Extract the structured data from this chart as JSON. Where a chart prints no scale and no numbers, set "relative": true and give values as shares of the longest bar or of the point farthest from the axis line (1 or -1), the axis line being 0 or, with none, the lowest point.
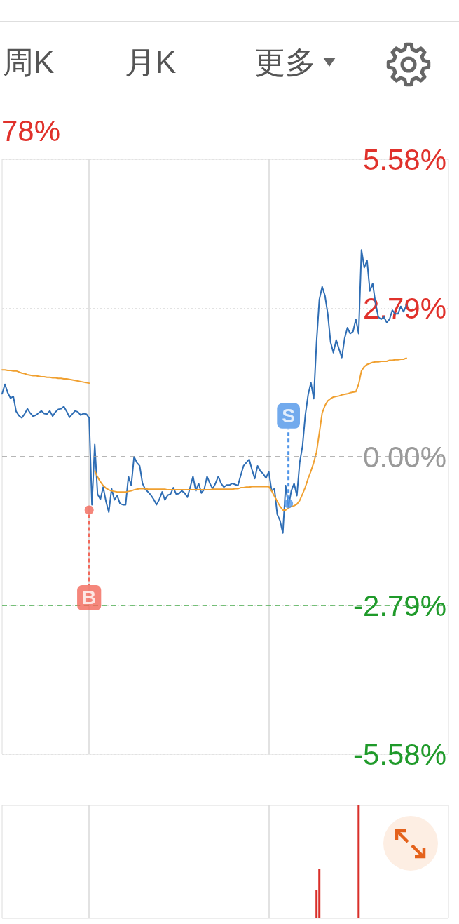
{
  "chart_data": [
    {
      "type": "line",
      "annotations": [
        "周K",
        "月K",
        "更多",
        "78%"
      ],
      "categories": [
        null,
        null,
        null,
        null,
        null,
        null,
        null,
        null,
        null,
        null,
        null,
        null,
        null,
        null,
        null,
        null,
        null,
        null,
        null,
        null,
        null,
        null,
        null,
        null,
        null,
        null,
        null,
        null,
        null,
        null,
        null,
        null,
        null,
        null,
        null,
        null,
        null,
        null,
        null,
        null,
        null,
        null,
        null,
        null,
        null,
        null,
        null,
        null,
        null,
        null,
        null,
        null,
        null,
        null,
        null,
        null,
        null,
        null,
        null,
        null,
        null,
        null,
        null,
        null,
        null,
        null,
        null,
        null,
        null,
        null,
        null,
        null,
        null,
        null,
        null,
        null,
        null,
        null,
        null,
        null,
        null,
        null,
        null,
        null,
        null,
        null,
        null,
        null,
        null,
        null,
        null,
        null,
        null,
        null,
        null,
        null,
        null,
        null,
        null,
        null,
        null,
        null,
        null,
        null,
        null,
        null,
        null,
        null,
        null,
        null,
        null,
        null,
        null,
        null,
        null,
        null,
        null,
        null,
        null,
        null,
        null,
        null,
        null,
        null,
        null,
        null,
        null,
        null,
        null,
        null,
        null,
        null,
        null,
        null,
        null,
        null,
        null,
        null,
        null,
        null,
        null,
        null,
        null,
        null,
        null,
        null,
        null,
        null,
        null,
        null,
        null,
        null,
        null,
        null,
        null,
        null,
        null,
        null,
        null,
        null
      ],
      "series": [
        {
          "color": "#2e6db4",
          "values": [
            1.18,
            1.36,
            1.2,
            1.1,
            1.13,
            0.85,
            0.77,
            0.73,
            0.8,
            0.9,
            0.82,
            0.76,
            0.78,
            0.82,
            0.86,
            0.81,
            0.8,
            0.86,
            0.76,
            0.84,
            0.89,
            0.9,
            0.94,
            0.85,
            0.74,
            0.8,
            0.86,
            0.84,
            0.78,
            0.81,
            0.8,
            0.73,
            -0.9,
            0.23,
            -0.7,
            -0.8,
            -0.57,
            -0.84,
            -1.04,
            -0.6,
            -0.81,
            -0.73,
            -0.88,
            -0.9,
            -0.9,
            -0.37,
            -0.54,
            0.0,
            -0.11,
            -0.17,
            -0.5,
            -0.61,
            -0.66,
            -0.72,
            -0.8,
            -0.9,
            -0.8,
            -0.66,
            -0.81,
            -0.72,
            -0.7,
            -0.58,
            -0.7,
            -0.69,
            -0.64,
            -0.68,
            -0.76,
            -0.57,
            -0.37,
            -0.64,
            -0.5,
            -0.68,
            -0.61,
            -0.37,
            -0.5,
            -0.6,
            -0.5,
            -0.37,
            -0.5,
            -0.57,
            -0.53,
            -0.53,
            -0.5,
            -0.52,
            -0.54,
            -0.35,
            -0.17,
            -0.11,
            -0.05,
            -0.24,
            -0.41,
            -0.17,
            -0.27,
            -0.32,
            -0.4,
            -0.28,
            -0.64,
            -0.6,
            -1.08,
            -1.2,
            -1.43,
            -0.54,
            -0.94,
            -0.64,
            -0.5,
            -0.73,
            -0.11,
            0.2,
            0.78,
            1.16,
            1.39,
            1.09,
            2.15,
            2.95,
            3.19,
            3.02,
            2.68,
            2.15,
            1.95,
            2.19,
            2.02,
            1.86,
            2.22,
            2.42,
            2.31,
            2.35,
            2.58,
            2.31,
            3.88,
            3.55,
            3.68,
            3.11,
            3.25,
            2.88,
            2.62,
            2.58,
            2.62,
            2.52,
            2.58,
            2.75,
            2.68,
            2.68,
            2.82,
            2.72,
            2.84,
            null,
            null,
            null,
            null,
            null,
            null,
            null,
            null,
            null,
            null,
            null,
            null,
            null,
            null,
            null
          ]
        },
        {
          "color": "#f0a030",
          "values": [
            1.63,
            1.63,
            1.62,
            1.62,
            1.61,
            1.61,
            1.59,
            1.57,
            1.56,
            1.54,
            1.53,
            1.52,
            1.52,
            1.51,
            1.5,
            1.5,
            1.49,
            1.49,
            1.48,
            1.48,
            1.47,
            1.47,
            1.46,
            1.46,
            1.45,
            1.44,
            1.43,
            1.42,
            1.41,
            1.4,
            1.39,
            1.38,
            null,
            -0.27,
            -0.38,
            -0.47,
            -0.54,
            -0.59,
            -0.62,
            -0.64,
            -0.65,
            -0.66,
            -0.66,
            -0.66,
            -0.66,
            -0.65,
            -0.64,
            -0.62,
            -0.61,
            -0.6,
            -0.6,
            -0.6,
            -0.61,
            -0.61,
            -0.61,
            -0.61,
            -0.61,
            -0.61,
            -0.61,
            -0.62,
            -0.62,
            -0.62,
            -0.62,
            -0.62,
            -0.62,
            -0.62,
            -0.62,
            -0.62,
            -0.62,
            -0.62,
            -0.62,
            -0.62,
            -0.62,
            -0.62,
            -0.62,
            -0.61,
            -0.61,
            -0.61,
            -0.61,
            -0.61,
            -0.61,
            -0.61,
            -0.61,
            -0.6,
            -0.6,
            -0.58,
            -0.58,
            -0.57,
            -0.57,
            -0.56,
            -0.56,
            -0.56,
            -0.56,
            -0.56,
            -0.56,
            -0.56,
            -0.64,
            -0.74,
            -0.84,
            -0.93,
            -1.0,
            -1.0,
            -0.96,
            -0.93,
            -0.92,
            -0.89,
            -0.82,
            -0.7,
            -0.57,
            -0.41,
            -0.27,
            -0.11,
            0.09,
            0.45,
            0.82,
            0.96,
            1.05,
            1.09,
            1.12,
            1.13,
            1.14,
            1.16,
            1.17,
            1.18,
            1.2,
            1.21,
            1.22,
            1.36,
            1.61,
            1.69,
            1.73,
            1.75,
            1.77,
            1.78,
            1.78,
            1.79,
            1.79,
            1.79,
            1.81,
            1.81,
            1.82,
            1.82,
            1.83,
            1.83,
            1.85,
            null,
            null,
            null,
            null,
            null,
            null,
            null,
            null,
            null,
            null,
            null,
            null,
            null,
            null,
            null
          ]
        },
        {
          "type": "scatter",
          "name": "B",
          "color": "#f2685a",
          "marker": "circle",
          "values": [
            null,
            null,
            null,
            null,
            null,
            null,
            null,
            null,
            null,
            null,
            null,
            null,
            null,
            null,
            null,
            null,
            null,
            null,
            null,
            null,
            null,
            null,
            null,
            null,
            null,
            null,
            null,
            null,
            null,
            null,
            null,
            -1.0,
            null,
            null,
            null,
            null,
            null,
            null,
            null,
            null,
            null,
            null,
            null,
            null,
            null,
            null,
            null,
            null,
            null,
            null,
            null,
            null,
            null,
            null,
            null,
            null,
            null,
            null,
            null,
            null,
            null,
            null,
            null,
            null,
            null,
            null,
            null,
            null,
            null,
            null,
            null,
            null,
            null,
            null,
            null,
            null,
            null,
            null,
            null,
            null,
            null,
            null,
            null,
            null,
            null,
            null,
            null,
            null,
            null,
            null,
            null,
            null,
            null,
            null,
            null,
            null,
            null,
            null,
            null,
            null,
            null,
            null,
            null,
            null,
            null,
            null,
            null,
            null,
            null,
            null,
            null,
            null,
            null,
            null,
            null,
            null,
            null,
            null,
            null,
            null,
            null,
            null,
            null,
            null,
            null,
            null,
            null,
            null,
            null,
            null,
            null,
            null,
            null,
            null,
            null,
            null,
            null,
            null,
            null,
            null,
            null,
            null,
            null,
            null,
            null,
            null,
            null,
            null,
            null,
            null,
            null,
            null,
            null,
            null,
            null,
            null,
            null,
            null,
            null,
            null
          ]
        },
        {
          "type": "scatter",
          "name": "S",
          "color": "#4f95e8",
          "marker": "circle",
          "values": [
            null,
            null,
            null,
            null,
            null,
            null,
            null,
            null,
            null,
            null,
            null,
            null,
            null,
            null,
            null,
            null,
            null,
            null,
            null,
            null,
            null,
            null,
            null,
            null,
            null,
            null,
            null,
            null,
            null,
            null,
            null,
            null,
            null,
            null,
            null,
            null,
            null,
            null,
            null,
            null,
            null,
            null,
            null,
            null,
            null,
            null,
            null,
            null,
            null,
            null,
            null,
            null,
            null,
            null,
            null,
            null,
            null,
            null,
            null,
            null,
            null,
            null,
            null,
            null,
            null,
            null,
            null,
            null,
            null,
            null,
            null,
            null,
            null,
            null,
            null,
            null,
            null,
            null,
            null,
            null,
            null,
            null,
            null,
            null,
            null,
            null,
            null,
            null,
            null,
            null,
            null,
            null,
            null,
            null,
            null,
            null,
            null,
            null,
            null,
            null,
            null,
            null,
            -0.88,
            null,
            null,
            null,
            null,
            null,
            null,
            null,
            null,
            null,
            null,
            null,
            null,
            null,
            null,
            null,
            null,
            null,
            null,
            null,
            null,
            null,
            null,
            null,
            null,
            null,
            null,
            null,
            null,
            null,
            null,
            null,
            null,
            null,
            null,
            null,
            null,
            null,
            null,
            null,
            null,
            null,
            null,
            null,
            null,
            null,
            null,
            null,
            null,
            null,
            null,
            null,
            null,
            null,
            null,
            null,
            null,
            null
          ]
        }
      ],
      "ylim": [
        -5.58,
        5.58
      ],
      "yticks": [
        {
          "value": -5.58,
          "label": "-5.58%"
        },
        {
          "value": -2.79,
          "label": "-2.79%"
        },
        {
          "value": 0,
          "label": "0.00%"
        },
        {
          "value": 2.79,
          "label": "2.79%"
        },
        {
          "value": 5.58,
          "label": "5.58%"
        }
      ],
      "grid": "y",
      "ref_lines": [
        {
          "axis": "y",
          "value": 0,
          "color": "#9e9e9e",
          "line_style": "dashed"
        },
        {
          "axis": "y",
          "value": -2.79,
          "color": "#4caf50",
          "line_style": "dashed"
        }
      ],
      "marker": "none",
      "line_style": "solid",
      "legend": false
    },
    {
      "type": "bar",
      "relative": true,
      "color": "#d9302a",
      "categories": [
        null,
        null,
        null,
        null,
        null,
        null,
        null,
        null,
        null,
        null,
        null,
        null,
        null,
        null,
        null,
        null,
        null,
        null,
        null,
        null,
        null,
        null,
        null,
        null,
        null,
        null,
        null,
        null,
        null,
        null,
        null,
        null,
        null,
        null,
        null,
        null,
        null,
        null,
        null,
        null,
        null,
        null,
        null,
        null,
        null,
        null,
        null,
        null,
        null,
        null,
        null,
        null,
        null,
        null,
        null,
        null,
        null,
        null,
        null,
        null,
        null,
        null,
        null,
        null,
        null,
        null,
        null,
        null,
        null,
        null,
        null,
        null,
        null,
        null,
        null,
        null,
        null,
        null,
        null,
        null,
        null,
        null,
        null,
        null,
        null,
        null,
        null,
        null,
        null,
        null,
        null,
        null,
        null,
        null,
        null,
        null,
        null,
        null,
        null,
        null,
        null,
        null,
        null,
        null,
        null,
        null,
        null,
        null,
        null,
        null,
        null,
        null,
        null,
        null,
        null,
        null,
        null,
        null,
        null,
        null,
        null,
        null,
        null,
        null,
        null,
        null,
        null,
        null,
        null,
        null,
        null,
        null,
        null,
        null,
        null,
        null,
        null,
        null,
        null,
        null,
        null,
        null,
        null,
        null,
        null,
        null,
        null,
        null,
        null,
        null,
        null,
        null,
        null,
        null,
        null,
        null,
        null,
        null,
        null,
        null
      ],
      "values": [
        null,
        null,
        null,
        null,
        null,
        null,
        null,
        null,
        null,
        null,
        null,
        null,
        null,
        null,
        null,
        null,
        null,
        null,
        null,
        null,
        null,
        null,
        null,
        null,
        null,
        null,
        null,
        null,
        null,
        null,
        null,
        null,
        null,
        null,
        null,
        null,
        null,
        null,
        null,
        null,
        null,
        null,
        null,
        null,
        null,
        null,
        null,
        null,
        null,
        null,
        null,
        null,
        null,
        null,
        null,
        null,
        null,
        null,
        null,
        null,
        null,
        null,
        null,
        null,
        null,
        null,
        null,
        null,
        null,
        null,
        null,
        null,
        null,
        null,
        null,
        null,
        null,
        null,
        null,
        null,
        null,
        null,
        null,
        null,
        null,
        null,
        null,
        null,
        null,
        null,
        null,
        null,
        null,
        null,
        null,
        null,
        null,
        null,
        null,
        null,
        null,
        null,
        null,
        null,
        null,
        null,
        null,
        null,
        null,
        null,
        null,
        null,
        0.25,
        0.44,
        null,
        null,
        null,
        null,
        null,
        null,
        null,
        null,
        null,
        null,
        null,
        null,
        null,
        1,
        null,
        null,
        null,
        null,
        null,
        null,
        null,
        null,
        null,
        null,
        null,
        null,
        null,
        null,
        null,
        null,
        null,
        null,
        null,
        null,
        null,
        null,
        null,
        null,
        null,
        null,
        null,
        null,
        null,
        null,
        null,
        null
      ]
    }
  ]
}
